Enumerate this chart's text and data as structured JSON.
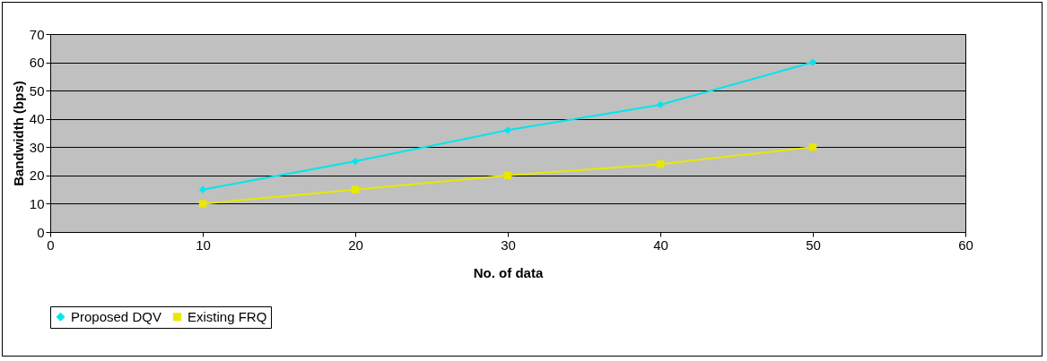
{
  "chart_data": {
    "type": "line",
    "xlabel": "No. of data",
    "ylabel": "Bandwidth (bps)",
    "x": [
      10,
      20,
      30,
      40,
      50
    ],
    "series": [
      {
        "name": "Proposed DQV",
        "color": "#00e5ee",
        "marker": "diamond",
        "values": [
          15,
          25,
          36,
          45,
          60
        ]
      },
      {
        "name": "Existing FRQ",
        "color": "#e8e800",
        "marker": "square",
        "values": [
          10,
          15,
          20,
          24,
          30
        ]
      }
    ],
    "xlim": [
      0,
      60
    ],
    "xticks": [
      0,
      10,
      20,
      30,
      40,
      50,
      60
    ],
    "ylim": [
      0,
      70
    ],
    "yticks": [
      0,
      10,
      20,
      30,
      40,
      50,
      60,
      70
    ],
    "grid": "y",
    "legend": "bottom"
  }
}
